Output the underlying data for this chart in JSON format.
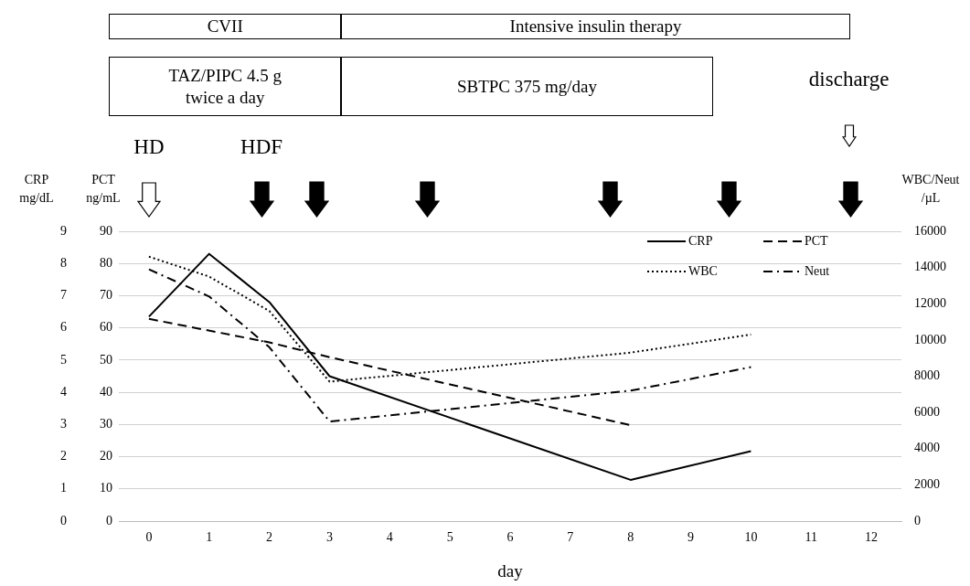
{
  "chart_data": {
    "type": "line",
    "xlabel": "day",
    "ylabel": "CRP mg/dL",
    "y3label": "PCT ng/mL",
    "y2label": "WBC/Neut /µL",
    "xlim": [
      -0.5,
      12.5
    ],
    "xticks": [
      0,
      1,
      2,
      3,
      4,
      5,
      6,
      7,
      8,
      9,
      10,
      11,
      12
    ],
    "ylim": [
      0,
      9
    ],
    "yticks": [
      0,
      1,
      2,
      3,
      4,
      5,
      6,
      7,
      8,
      9
    ],
    "y3lim": [
      0,
      90
    ],
    "y3ticks": [
      0,
      10,
      20,
      30,
      40,
      50,
      60,
      70,
      80,
      90
    ],
    "y2lim": [
      0,
      16000
    ],
    "y2ticks": [
      0,
      2000,
      4000,
      6000,
      8000,
      10000,
      12000,
      14000,
      16000
    ],
    "grid": "y",
    "legend": "top right",
    "marker": "none",
    "series": [
      {
        "name": "CRP",
        "color": "#000000",
        "line_style": "solid",
        "x": [
          0,
          1,
          2,
          3,
          8,
          10
        ],
        "values": [
          6.35,
          8.3,
          6.8,
          4.5,
          1.28,
          2.17
        ]
      },
      {
        "name": "PCT",
        "color": "#000000",
        "line_style": "dashed",
        "axis": "y3",
        "x": [
          0,
          2,
          3,
          8
        ],
        "values": [
          62.8,
          55.5,
          50.9,
          29.8
        ]
      },
      {
        "name": "WBC",
        "color": "#000000",
        "line_style": "dotted",
        "axis": "y2",
        "x": [
          0,
          1,
          2,
          3,
          8,
          10
        ],
        "values": [
          14600,
          13500,
          11600,
          7700,
          9300,
          10300
        ]
      },
      {
        "name": "Neut",
        "color": "#000000",
        "line_style": "dashdot",
        "axis": "y2",
        "x": [
          0,
          1,
          2,
          3,
          8,
          10
        ],
        "values": [
          13900,
          12400,
          9600,
          5500,
          7200,
          8500
        ]
      }
    ],
    "annotations": [
      "CVII",
      "Intensive insulin therapy",
      "TAZ/PIPC 4.5 g twice a day",
      "SBTPC 375 mg/day",
      "HD",
      "HDF",
      "discharge"
    ]
  }
}
